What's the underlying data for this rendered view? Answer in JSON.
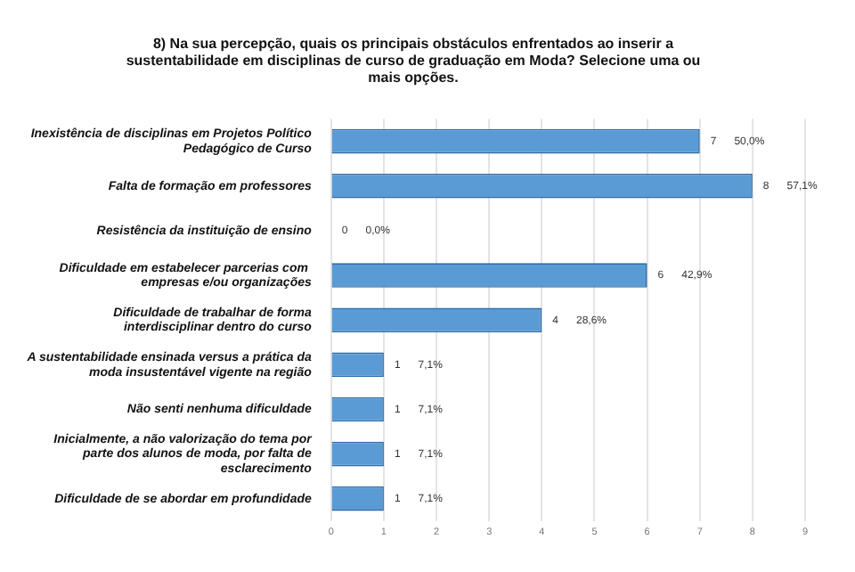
{
  "chart_data": {
    "type": "bar",
    "orientation": "horizontal",
    "title": "8) Na sua percepção, quais os principais obstáculos enfrentados ao inserir a sustentabilidade em disciplinas de curso de graduação em Moda? Selecione uma ou mais opções.",
    "categories": [
      "Inexistência de disciplinas em Projetos Político Pedagógico de Curso",
      "Falta de formação em professores",
      "Resistência da instituição de ensino",
      "Dificuldade em estabelecer parcerias com  empresas e/ou organizações",
      "Dificuldade de trabalhar de forma interdisciplinar dentro do curso",
      "A sustentabilidade ensinada versus a prática da moda insustentável vigente na região",
      "Não senti nenhuma dificuldade",
      "Inicialmente, a não valorização do tema por parte dos alunos de moda, por falta de esclarecimento",
      "Dificuldade de se abordar em profundidade"
    ],
    "values": [
      7,
      8,
      0,
      6,
      4,
      1,
      1,
      1,
      1
    ],
    "value_labels": [
      "7      50,0%",
      "8      57,1%",
      "0      0,0%",
      "6      42,9%",
      "4      28,6%",
      "1      7,1%",
      "1      7,1%",
      "1      7,1%",
      "1      7,1%"
    ],
    "color": "#5b9bd5",
    "xlim": [
      0,
      9
    ],
    "xticks": [
      0,
      1,
      2,
      3,
      4,
      5,
      6,
      7,
      8,
      9
    ],
    "grid": "x",
    "legend": false
  }
}
